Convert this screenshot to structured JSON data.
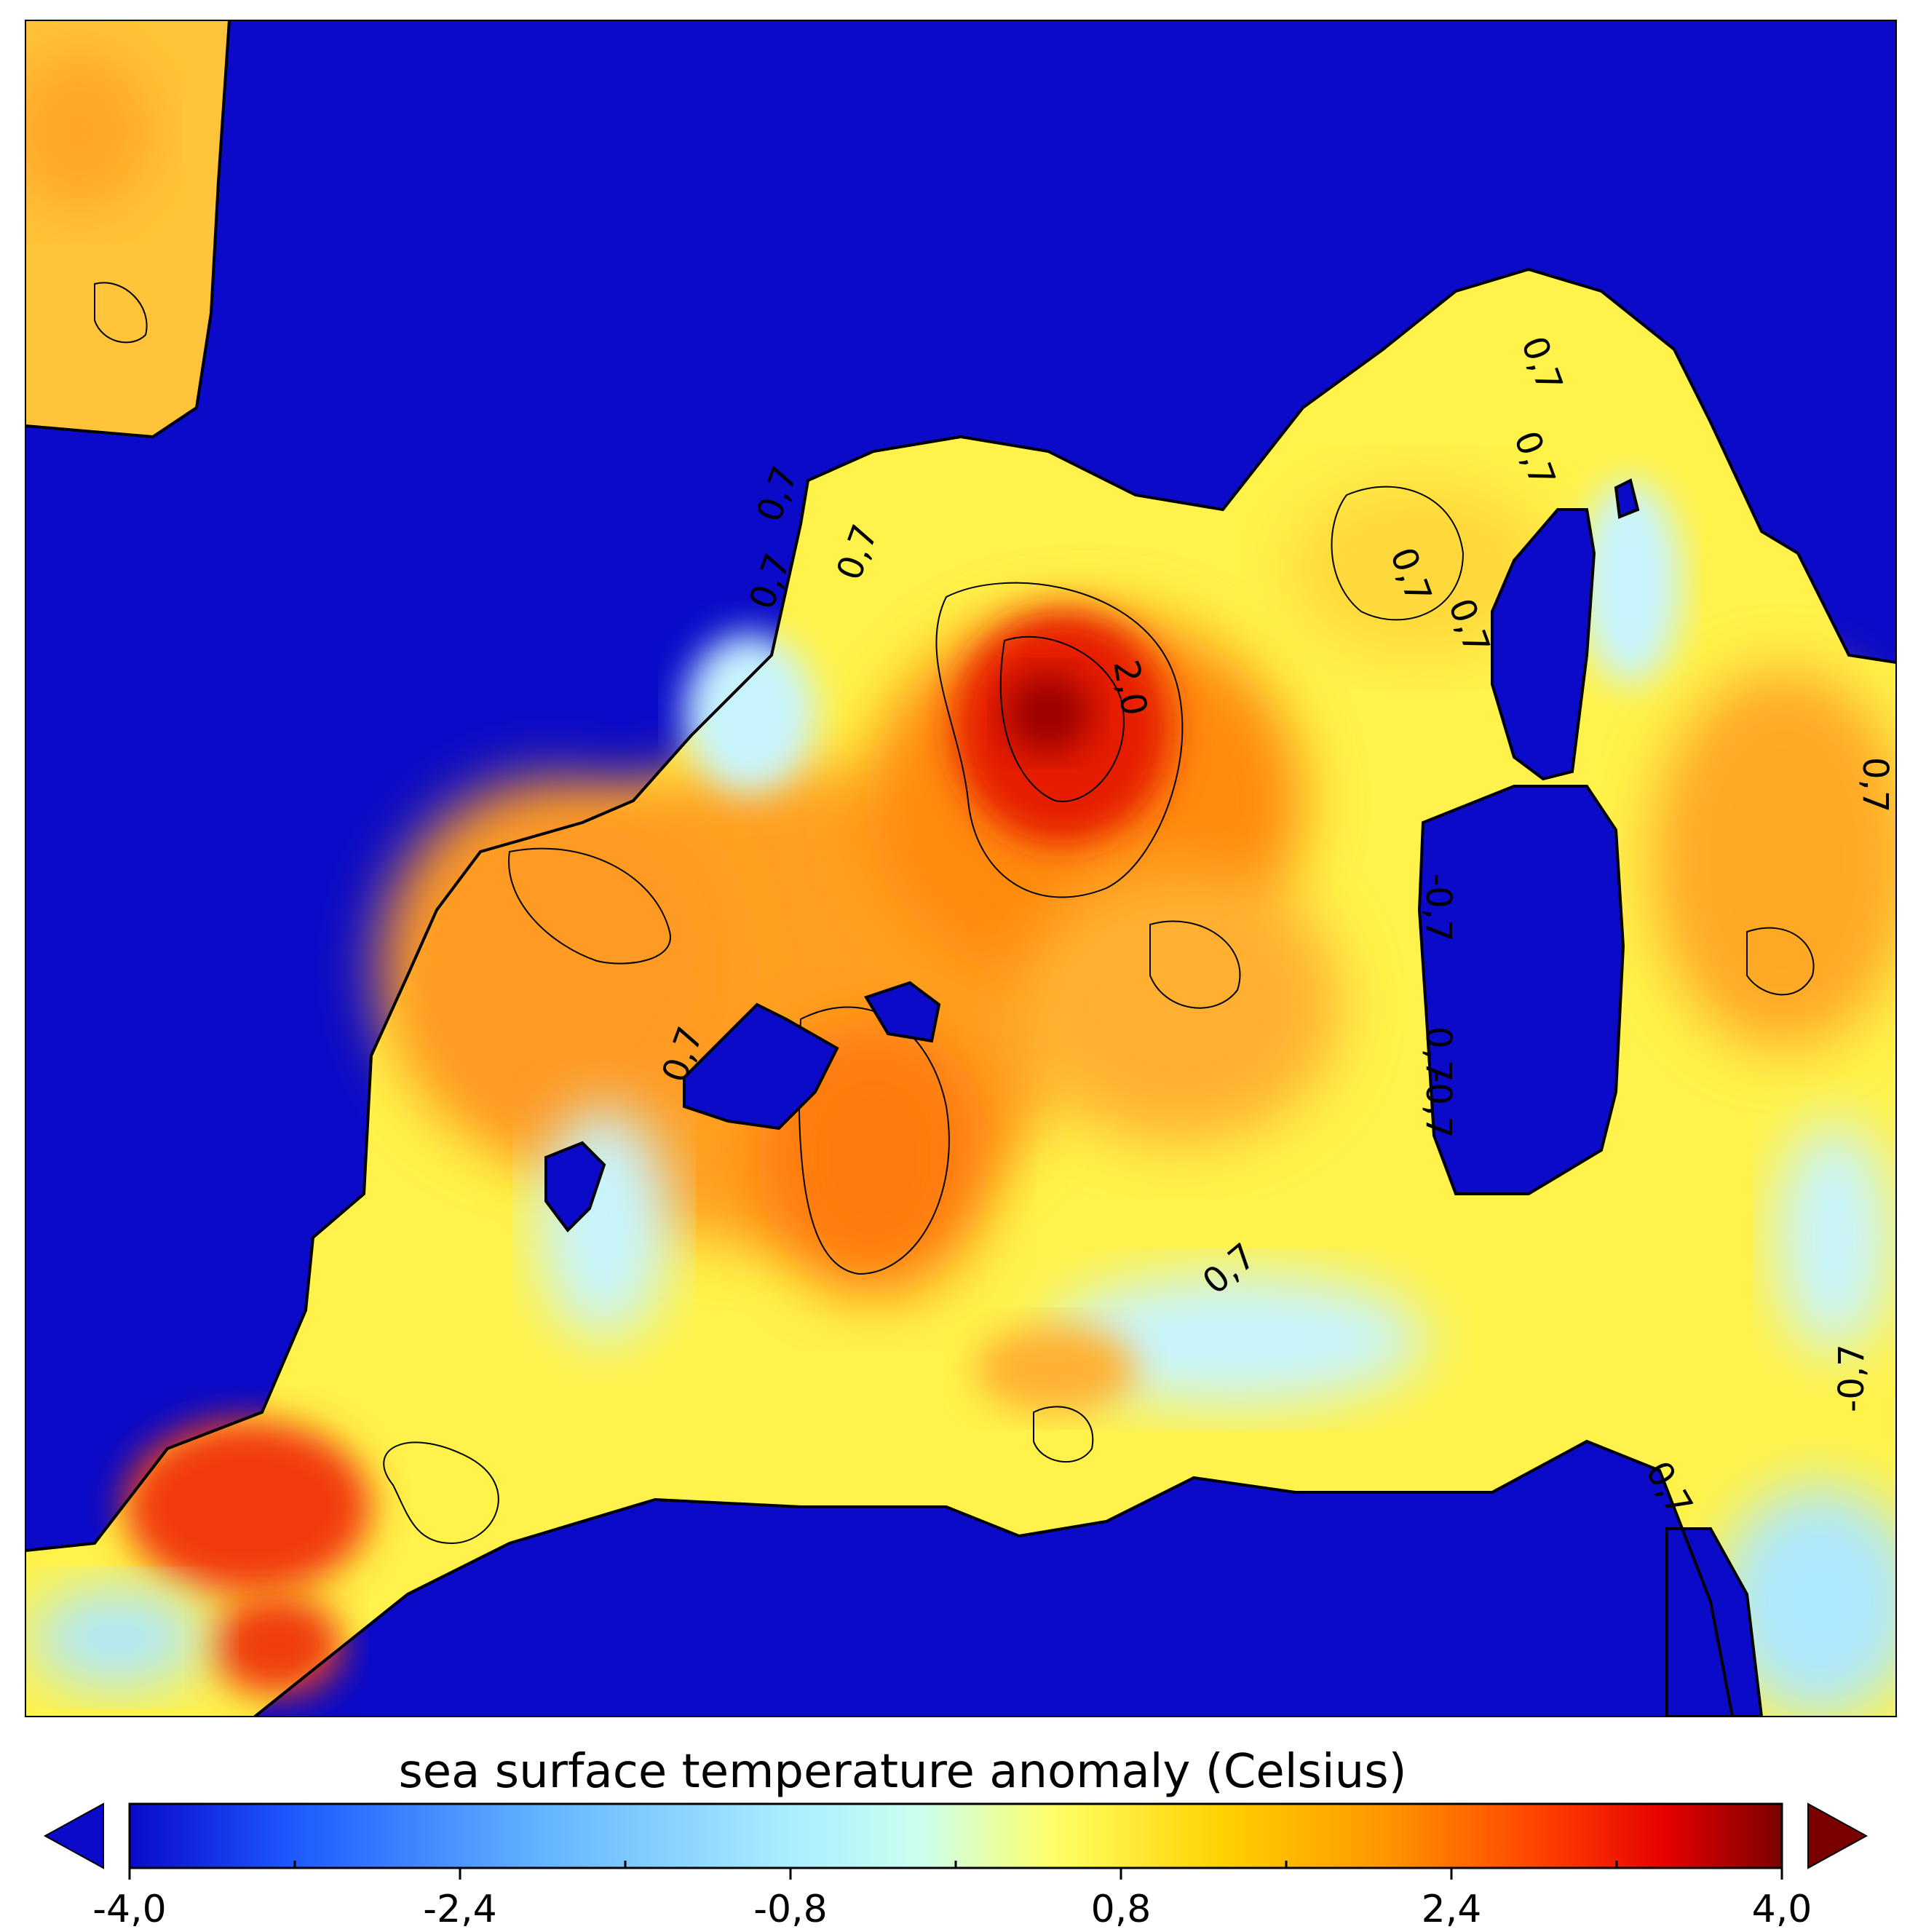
{
  "map": {
    "variable": "sea surface temperature anomaly",
    "units": "Celsius",
    "colors": {
      "land": "#0a0ac8",
      "coast": "#000000"
    },
    "contour_labels": [
      "0,7",
      "0,7",
      "0,7",
      "0,7",
      "2,0",
      "0,7",
      "0,7",
      "0,7",
      "-0,7",
      "0,7",
      "-0,7",
      "0,7",
      "0,7",
      "-0,7",
      "0,7",
      "0,7"
    ]
  },
  "colorbar": {
    "title": "sea surface temperature anomaly (Celsius)",
    "min": -4.0,
    "max": 4.0,
    "tick_labels": [
      "-4,0",
      "-2,4",
      "-0,8",
      "0,8",
      "2,4",
      "4,0"
    ],
    "stops": [
      "#0a0ac8",
      "#1e5aff",
      "#64b4ff",
      "#aaeeff",
      "#ccffee",
      "#ffff66",
      "#ffd200",
      "#ff9600",
      "#ff3c00",
      "#e60000",
      "#7a0000"
    ],
    "under_color": "#0a0ac8",
    "over_color": "#7a0000"
  }
}
